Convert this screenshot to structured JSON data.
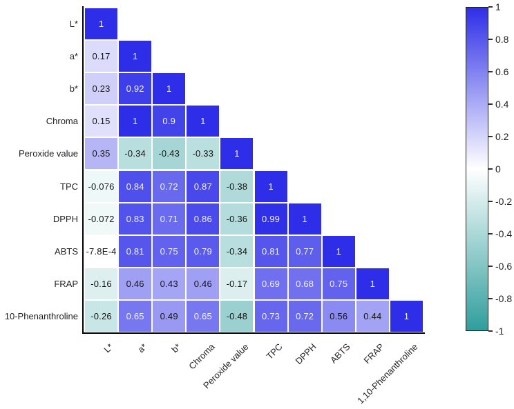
{
  "chart_data": {
    "type": "heatmap",
    "subtype": "lower-triangle-correlation-matrix",
    "title": "",
    "row_labels": [
      "L*",
      "a*",
      "b*",
      "Chroma",
      "Peroxide value",
      "TPC",
      "DPPH",
      "ABTS",
      "FRAP",
      "10-Phenanthroline"
    ],
    "col_labels": [
      "L*",
      "a*",
      "b*",
      "Chroma",
      "Peroxide value",
      "TPC",
      "DPPH",
      "ABTS",
      "FRAP",
      "1,10-Phenanthroline"
    ],
    "matrix_display": [
      [
        "1"
      ],
      [
        "0.17",
        "1"
      ],
      [
        "0.23",
        "0.92",
        "1"
      ],
      [
        "0.15",
        "1",
        "0.9",
        "1"
      ],
      [
        "0.35",
        "-0.34",
        "-0.43",
        "-0.33",
        "1"
      ],
      [
        "-0.076",
        "0.84",
        "0.72",
        "0.87",
        "-0.38",
        "1"
      ],
      [
        "-0.072",
        "0.83",
        "0.71",
        "0.86",
        "-0.36",
        "0.99",
        "1"
      ],
      [
        "-7.8E-4",
        "0.81",
        "0.75",
        "0.79",
        "-0.34",
        "0.81",
        "0.77",
        "1"
      ],
      [
        "-0.16",
        "0.46",
        "0.43",
        "0.46",
        "-0.17",
        "0.69",
        "0.68",
        "0.75",
        "1"
      ],
      [
        "-0.26",
        "0.65",
        "0.49",
        "0.65",
        "-0.48",
        "0.73",
        "0.72",
        "0.56",
        "0.44",
        "1"
      ]
    ],
    "matrix_values": [
      [
        1
      ],
      [
        0.17,
        1
      ],
      [
        0.23,
        0.92,
        1
      ],
      [
        0.15,
        1,
        0.9,
        1
      ],
      [
        0.35,
        -0.34,
        -0.43,
        -0.33,
        1
      ],
      [
        -0.076,
        0.84,
        0.72,
        0.87,
        -0.38,
        1
      ],
      [
        -0.072,
        0.83,
        0.71,
        0.86,
        -0.36,
        0.99,
        1
      ],
      [
        -0.00078,
        0.81,
        0.75,
        0.79,
        -0.34,
        0.81,
        0.77,
        1
      ],
      [
        -0.16,
        0.46,
        0.43,
        0.46,
        -0.17,
        0.69,
        0.68,
        0.75,
        1
      ],
      [
        -0.26,
        0.65,
        0.49,
        0.65,
        -0.48,
        0.73,
        0.72,
        0.56,
        0.44,
        1
      ]
    ],
    "colorbar": {
      "min": -1,
      "max": 1,
      "position": "right",
      "tick_labels": [
        "1",
        "0.8",
        "0.6",
        "0.4",
        "0.2",
        "0",
        "-0.2",
        "-0.4",
        "-0.6",
        "-0.8",
        "-1"
      ]
    },
    "colors": {
      "positive_max": "#2e2ee8",
      "zero": "#ffffff",
      "negative_max": "#2f9e9d",
      "cell_text_light": "#f2f2f8",
      "cell_text_dark": "#141414",
      "axis": "#000000"
    },
    "layout": {
      "grid_lines": false,
      "white_cell_gap": true,
      "x_label_rotation_deg": 45,
      "light_text_threshold": 0.6
    }
  }
}
